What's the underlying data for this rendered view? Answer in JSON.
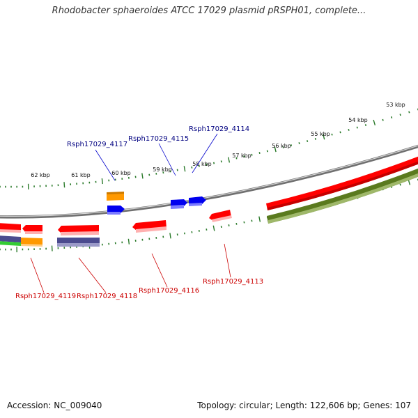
{
  "title": "Rhodobacter sphaeroides ATCC 17029 plasmid pRSPH01, complete...",
  "footer": {
    "accession_label": "Accession:",
    "accession": "NC_009040",
    "topology_label": "Topology:",
    "topology": "circular",
    "length_label": "Length:",
    "length": "122,606 bp",
    "genes_label": "Genes:",
    "genes": "107"
  },
  "colors": {
    "backbone": "#8a8a8a",
    "forward_gene": "#ff0000",
    "reverse_gene": "#ff0000",
    "blue_gene": "#0000ee",
    "orange_gene": "#ff9900",
    "purple_gene": "#4b4b8f",
    "olive_gene": "#5a7a1e",
    "green_gene": "#33cc33",
    "tick": "#2a7a2a",
    "label_forward": "#000080",
    "label_reverse": "#cc0000"
  },
  "kbp_ticks": [
    {
      "label": "62 kbp",
      "kbp": 62
    },
    {
      "label": "61 kbp",
      "kbp": 61
    },
    {
      "label": "60 kbp",
      "kbp": 60
    },
    {
      "label": "59 kbp",
      "kbp": 59
    },
    {
      "label": "58 kbp",
      "kbp": 58
    },
    {
      "label": "57 kbp",
      "kbp": 57
    },
    {
      "label": "56 kbp",
      "kbp": 56
    },
    {
      "label": "55 kbp",
      "kbp": 55
    },
    {
      "label": "54 kbp",
      "kbp": 54
    },
    {
      "label": "53 kbp",
      "kbp": 53
    }
  ],
  "gene_labels_top": [
    "Rsph17029_4117",
    "Rsph17029_4115",
    "Rsph17029_4114"
  ],
  "gene_labels_bottom": [
    "Rsph17029_4119",
    "Rsph17029_4118",
    "Rsph17029_4116",
    "Rsph17029_4113"
  ]
}
